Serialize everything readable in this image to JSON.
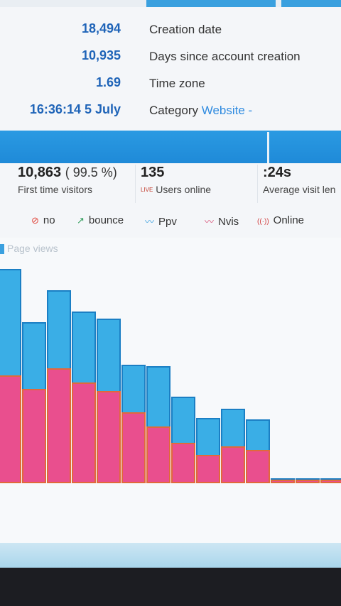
{
  "stats": [
    {
      "value": "18,494",
      "label": "Creation date"
    },
    {
      "value": "10,935",
      "label": "Days since account creation"
    },
    {
      "value": "1.69",
      "label": "Time zone"
    },
    {
      "value": "16:36:14 5 July",
      "label": "Category",
      "link": "Website -"
    }
  ],
  "kpis": {
    "first_visitors": {
      "value": "10,863",
      "pct": "( 99.5 %)",
      "label": "First time visitors"
    },
    "users_online": {
      "value": "135",
      "live": "LIVE",
      "label": "Users online"
    },
    "avg_visit": {
      "value": ":24s",
      "label": "Average visit len"
    }
  },
  "legend": [
    {
      "icon": "no-icon",
      "symbol": "⊘",
      "color": "#e0453a",
      "label": "no"
    },
    {
      "icon": "bounce-icon",
      "symbol": "↗",
      "color": "#2e9c5a",
      "label": "bounce"
    },
    {
      "icon": "ppv-icon",
      "symbol": "〰",
      "color": "#3aa0df",
      "label": "Ppv"
    },
    {
      "icon": "nvis-icon",
      "symbol": "〰",
      "color": "#d9557a",
      "label": "Nvis"
    },
    {
      "icon": "online-icon",
      "symbol": "((·))",
      "color": "#d13b3b",
      "label": "Online"
    }
  ],
  "chart_title": "Page views",
  "chart_data": {
    "type": "bar",
    "title": "Page views",
    "series": [
      {
        "color": "#3aaee6",
        "values": [
          300,
          225,
          270,
          240,
          230,
          165,
          163,
          120,
          90,
          103,
          88,
          5,
          5,
          5
        ]
      },
      {
        "color": "#e94f8e",
        "values": [
          150,
          131,
          160,
          140,
          128,
          98,
          78,
          55,
          38,
          50,
          45,
          3,
          3,
          3
        ]
      }
    ]
  },
  "colors": {
    "accent": "#2a9ae2",
    "value_blue": "#1f64b8"
  }
}
